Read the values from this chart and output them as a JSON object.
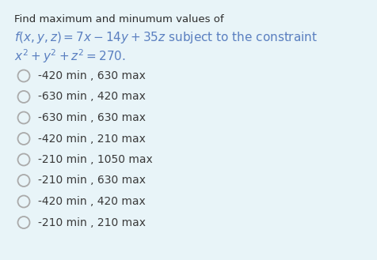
{
  "background_color": "#e8f4f8",
  "title_line1": "Find maximum and minumum values of",
  "formula_line": "$f(x, y, z) = 7x - 14y + 35z$ subject to the constraint",
  "constraint_line": "$x^2 + y^2 + z^2 = 270.$",
  "options": [
    "-420 min , 630 max",
    "-630 min , 420 max",
    "-630 min , 630 max",
    "-420 min , 210 max",
    "-210 min , 1050 max",
    "-210 min , 630 max",
    "-420 min , 420 max",
    "-210 min , 210 max"
  ],
  "text_color": "#2c2c2c",
  "formula_color": "#5a7fc0",
  "option_text_color": "#3a3a3a",
  "circle_edge_color": "#aaaaaa",
  "title_fontsize": 9.5,
  "formula_fontsize": 11.0,
  "option_fontsize": 10.0,
  "fig_width": 4.77,
  "fig_height": 3.29,
  "fig_dpi": 100
}
